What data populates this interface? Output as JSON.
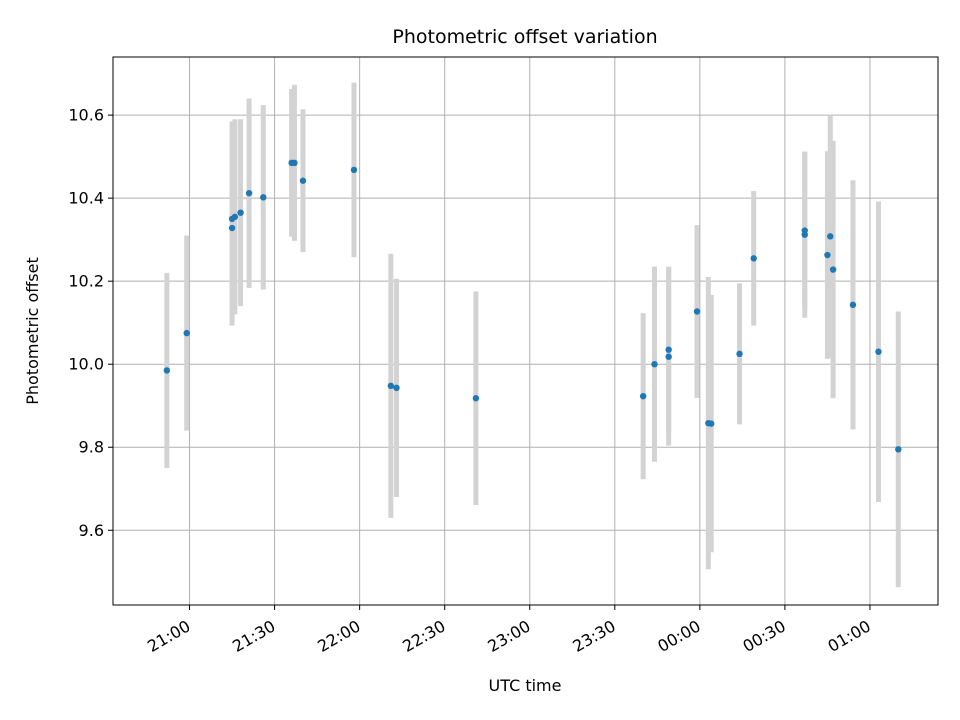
{
  "chart_data": {
    "type": "scatter",
    "title": "Photometric offset variation",
    "xlabel": "UTC time",
    "ylabel": "Photometric offset",
    "grid": true,
    "x_unit": "UTC time (HH:MM)",
    "xlim": [
      "20:33",
      "01:24"
    ],
    "ylim": [
      9.42,
      10.74
    ],
    "xticks": [
      "21:00",
      "21:30",
      "22:00",
      "22:30",
      "23:00",
      "23:30",
      "00:00",
      "00:30",
      "01:00"
    ],
    "yticks": [
      "9.6",
      "9.8",
      "10.0",
      "10.2",
      "10.4",
      "10.6"
    ],
    "colors": {
      "points": "#1f77b4",
      "errorbars": "#d3d3d3",
      "grid": "#b0b0b0"
    },
    "points": [
      {
        "t": "20:52",
        "y": 9.985,
        "err": 0.235
      },
      {
        "t": "20:59",
        "y": 10.075,
        "err": 0.235
      },
      {
        "t": "21:15",
        "y": 10.328,
        "err": 0.235
      },
      {
        "t": "21:15",
        "y": 10.35,
        "err": 0.235
      },
      {
        "t": "21:16",
        "y": 10.355,
        "err": 0.235
      },
      {
        "t": "21:18",
        "y": 10.365,
        "err": 0.225
      },
      {
        "t": "21:21",
        "y": 10.412,
        "err": 0.228
      },
      {
        "t": "21:26",
        "y": 10.402,
        "err": 0.222
      },
      {
        "t": "21:36",
        "y": 10.485,
        "err": 0.178
      },
      {
        "t": "21:37",
        "y": 10.485,
        "err": 0.188
      },
      {
        "t": "21:40",
        "y": 10.442,
        "err": 0.172
      },
      {
        "t": "21:58",
        "y": 10.468,
        "err": 0.21
      },
      {
        "t": "22:11",
        "y": 9.948,
        "err": 0.318
      },
      {
        "t": "22:13",
        "y": 9.943,
        "err": 0.263
      },
      {
        "t": "22:41",
        "y": 9.918,
        "err": 0.257
      },
      {
        "t": "23:40",
        "y": 9.923,
        "err": 0.2
      },
      {
        "t": "23:44",
        "y": 10.0,
        "err": 0.235
      },
      {
        "t": "23:49",
        "y": 10.018,
        "err": 0.214
      },
      {
        "t": "23:49",
        "y": 10.035,
        "err": 0.2
      },
      {
        "t": "23:59",
        "y": 10.127,
        "err": 0.208
      },
      {
        "t": "00:03",
        "y": 9.858,
        "err": 0.352
      },
      {
        "t": "00:04",
        "y": 9.857,
        "err": 0.31
      },
      {
        "t": "00:14",
        "y": 10.025,
        "err": 0.17
      },
      {
        "t": "00:19",
        "y": 10.255,
        "err": 0.162
      },
      {
        "t": "00:37",
        "y": 10.312,
        "err": 0.2
      },
      {
        "t": "00:37",
        "y": 10.322,
        "err": 0.19
      },
      {
        "t": "00:45",
        "y": 10.263,
        "err": 0.25
      },
      {
        "t": "00:46",
        "y": 10.308,
        "err": 0.292
      },
      {
        "t": "00:47",
        "y": 10.228,
        "err": 0.31
      },
      {
        "t": "00:54",
        "y": 10.143,
        "err": 0.3
      },
      {
        "t": "01:03",
        "y": 10.03,
        "err": 0.362
      },
      {
        "t": "01:10",
        "y": 9.795,
        "err": 0.332
      }
    ]
  }
}
